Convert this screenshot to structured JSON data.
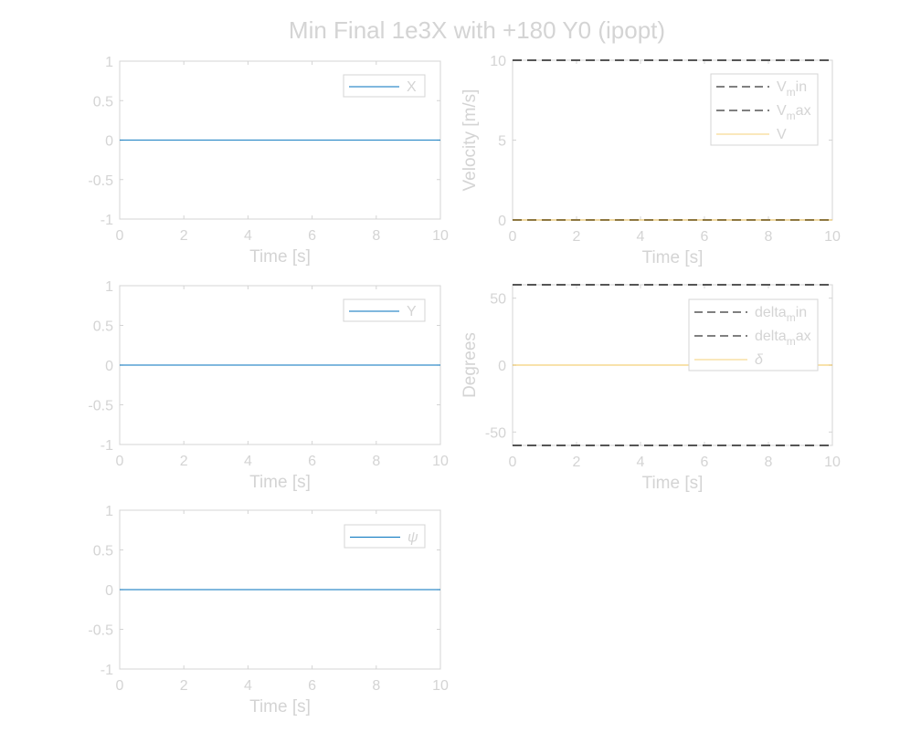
{
  "figure": {
    "title": "Min Final 1e3X with +180 Y0 (ipopt)"
  },
  "colors": {
    "text": "#d4d4d4",
    "axes": "#d4d4d4",
    "blue": "#0072BD",
    "yellow": "#EDB120",
    "bound": "#555555",
    "legend_dash": "#000000"
  },
  "chart_data": [
    {
      "id": "x",
      "type": "line",
      "xlabel": "Time [s]",
      "ylabel": "",
      "xlim": [
        0,
        10
      ],
      "ylim": [
        -1,
        1
      ],
      "xticks": [
        0,
        2,
        4,
        6,
        8,
        10
      ],
      "yticks": [
        -1,
        -0.5,
        0,
        0.5,
        1
      ],
      "legend_position": "top-right",
      "series": [
        {
          "name": "X",
          "color": "#0072BD",
          "style": "solid",
          "x": [
            0,
            10
          ],
          "y": [
            0,
            0
          ]
        }
      ]
    },
    {
      "id": "velocity",
      "type": "line",
      "xlabel": "Time [s]",
      "ylabel": "Velocity [m/s]",
      "xlim": [
        0,
        10
      ],
      "ylim": [
        0,
        10
      ],
      "xticks": [
        0,
        2,
        4,
        6,
        8,
        10
      ],
      "yticks": [
        0,
        5,
        10
      ],
      "legend_position": "top-right",
      "series": [
        {
          "name": "V",
          "sub": "m",
          "suffix": "in",
          "color": "#555555",
          "legend_color": "#000000",
          "style": "dashed",
          "x": [
            0,
            10
          ],
          "y": [
            0,
            0
          ]
        },
        {
          "name": "V",
          "sub": "m",
          "suffix": "ax",
          "color": "#555555",
          "legend_color": "#000000",
          "style": "dashed",
          "x": [
            0,
            10
          ],
          "y": [
            10,
            10
          ]
        },
        {
          "name": "V",
          "color": "#EDB120",
          "style": "solid",
          "x": [
            0,
            10
          ],
          "y": [
            0,
            0
          ]
        }
      ]
    },
    {
      "id": "y",
      "type": "line",
      "xlabel": "Time [s]",
      "ylabel": "",
      "xlim": [
        0,
        10
      ],
      "ylim": [
        -1,
        1
      ],
      "xticks": [
        0,
        2,
        4,
        6,
        8,
        10
      ],
      "yticks": [
        -1,
        -0.5,
        0,
        0.5,
        1
      ],
      "legend_position": "top-right",
      "series": [
        {
          "name": "Y",
          "color": "#0072BD",
          "style": "solid",
          "x": [
            0,
            10
          ],
          "y": [
            0,
            0
          ]
        }
      ]
    },
    {
      "id": "delta",
      "type": "line",
      "xlabel": "Time [s]",
      "ylabel": "Degrees",
      "xlim": [
        0,
        10
      ],
      "ylim": [
        -60,
        60
      ],
      "xticks": [
        0,
        2,
        4,
        6,
        8,
        10
      ],
      "yticks": [
        -50,
        0,
        50
      ],
      "legend_position": "top-right",
      "series": [
        {
          "name": "delta",
          "sub": "m",
          "suffix": "in",
          "color": "#555555",
          "legend_color": "#000000",
          "style": "dashed",
          "x": [
            0,
            10
          ],
          "y": [
            -60,
            -60
          ]
        },
        {
          "name": "delta",
          "sub": "m",
          "suffix": "ax",
          "color": "#555555",
          "legend_color": "#000000",
          "style": "dashed",
          "x": [
            0,
            10
          ],
          "y": [
            60,
            60
          ]
        },
        {
          "name": "δ",
          "italic": true,
          "color": "#EDB120",
          "style": "solid",
          "x": [
            0,
            10
          ],
          "y": [
            0,
            0
          ]
        }
      ]
    },
    {
      "id": "psi",
      "type": "line",
      "xlabel": "Time [s]",
      "ylabel": "",
      "xlim": [
        0,
        10
      ],
      "ylim": [
        -1,
        1
      ],
      "xticks": [
        0,
        2,
        4,
        6,
        8,
        10
      ],
      "yticks": [
        -1,
        -0.5,
        0,
        0.5,
        1
      ],
      "legend_position": "top-right",
      "series": [
        {
          "name": "ψ",
          "italic": true,
          "color": "#0072BD",
          "style": "solid",
          "x": [
            0,
            10
          ],
          "y": [
            0,
            0
          ]
        }
      ]
    }
  ]
}
